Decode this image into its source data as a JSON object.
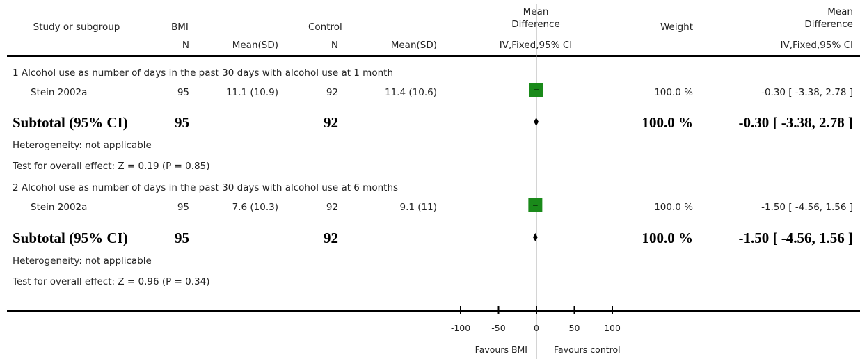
{
  "header": {
    "study": "Study or subgroup",
    "group1": "BMI",
    "group2": "Control",
    "md_top": "Mean",
    "md_bottom": "Difference",
    "weight": "Weight",
    "md2_top": "Mean",
    "md2_bottom": "Difference",
    "n1": "N",
    "mean1": "Mean(SD)",
    "n2": "N",
    "mean2": "Mean(SD)",
    "method_plot": "IV,Fixed,95% CI",
    "method_right": "IV,Fixed,95% CI"
  },
  "subgroups": [
    {
      "title": "1 Alcohol use as number of days in the past 30 days with alcohol use at 1 month",
      "study": {
        "name": "Stein 2002a",
        "n1": "95",
        "mean1": "11.1 (10.9)",
        "n2": "92",
        "mean2": "11.4 (10.6)",
        "weight": "100.0 %",
        "ci": "-0.30 [ -3.38, 2.78 ]"
      },
      "subtotal": {
        "label": "Subtotal (95% CI)",
        "n1": "95",
        "n2": "92",
        "weight": "100.0 %",
        "ci": "-0.30 [ -3.38, 2.78 ]"
      },
      "heterogeneity": "Heterogeneity: not applicable",
      "overall": "Test for overall effect: Z = 0.19 (P = 0.85)"
    },
    {
      "title": "2 Alcohol use as number of days in the past 30 days with alcohol use at 6 months",
      "study": {
        "name": "Stein 2002a",
        "n1": "95",
        "mean1": "7.6 (10.3)",
        "n2": "92",
        "mean2": "9.1 (11)",
        "weight": "100.0 %",
        "ci": "-1.50 [ -4.56, 1.56 ]"
      },
      "subtotal": {
        "label": "Subtotal (95% CI)",
        "n1": "95",
        "n2": "92",
        "weight": "100.0 %",
        "ci": "-1.50 [ -4.56, 1.56 ]"
      },
      "heterogeneity": "Heterogeneity: not applicable",
      "overall": "Test for overall effect: Z = 0.96 (P = 0.34)"
    }
  ],
  "axis": {
    "favours_left": "Favours BMI",
    "favours_right": "Favours control"
  },
  "colors": {
    "study_marker": "#1a8a1a",
    "diamond": "#000000",
    "null_line": "#aaaaaa"
  },
  "chart_data": {
    "type": "forest",
    "xlim": [
      -100,
      100
    ],
    "x_ticks": [
      -100,
      -50,
      0,
      50,
      100
    ],
    "null_value": 0,
    "studies": [
      {
        "subgroup": 1,
        "name": "Stein 2002a",
        "estimate": -0.3,
        "ci": [
          -3.38,
          2.78
        ],
        "weight": 100.0
      },
      {
        "subgroup": 2,
        "name": "Stein 2002a",
        "estimate": -1.5,
        "ci": [
          -4.56,
          1.56
        ],
        "weight": 100.0
      }
    ],
    "subtotals": [
      {
        "subgroup": 1,
        "estimate": -0.3,
        "ci": [
          -3.38,
          2.78
        ]
      },
      {
        "subgroup": 2,
        "estimate": -1.5,
        "ci": [
          -4.56,
          1.56
        ]
      }
    ]
  }
}
